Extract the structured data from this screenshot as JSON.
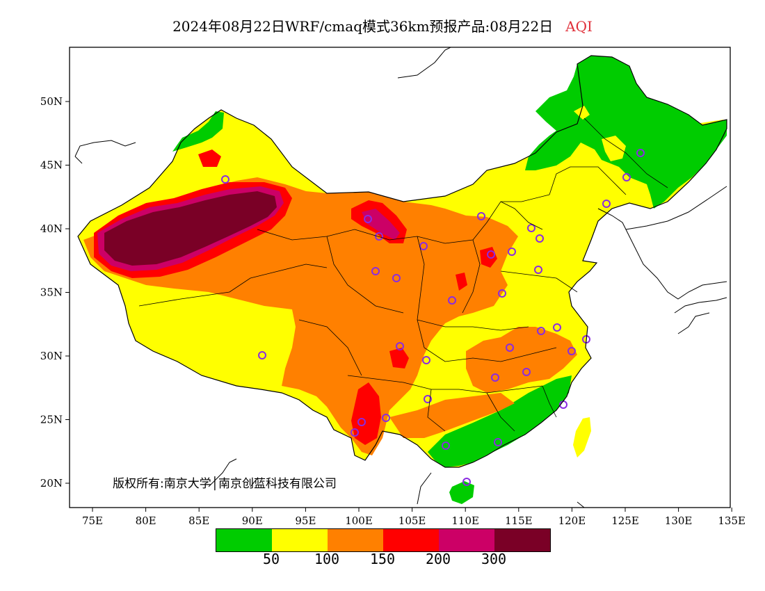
{
  "title": {
    "main": "2024年08月22日WRF/cmaq模式36km预报产品:08月22日",
    "variable": "AQI",
    "variable_color": "#e0303a"
  },
  "axes": {
    "x_ticks": [
      "75E",
      "80E",
      "85E",
      "90E",
      "95E",
      "100E",
      "105E",
      "110E",
      "115E",
      "120E",
      "125E",
      "130E",
      "135E"
    ],
    "y_ticks": [
      "20N",
      "25N",
      "30N",
      "35N",
      "40N",
      "45N",
      "50N"
    ]
  },
  "copyright": "版权所有:南京大学│南京创蓝科技有限公司",
  "legend": {
    "colors": [
      "#00cc00",
      "#ffff00",
      "#ff8000",
      "#ff0000",
      "#cc0066",
      "#7a0026"
    ],
    "labels": [
      "50",
      "100",
      "150",
      "200",
      "300"
    ]
  },
  "stations_color": "#8a2be2"
}
